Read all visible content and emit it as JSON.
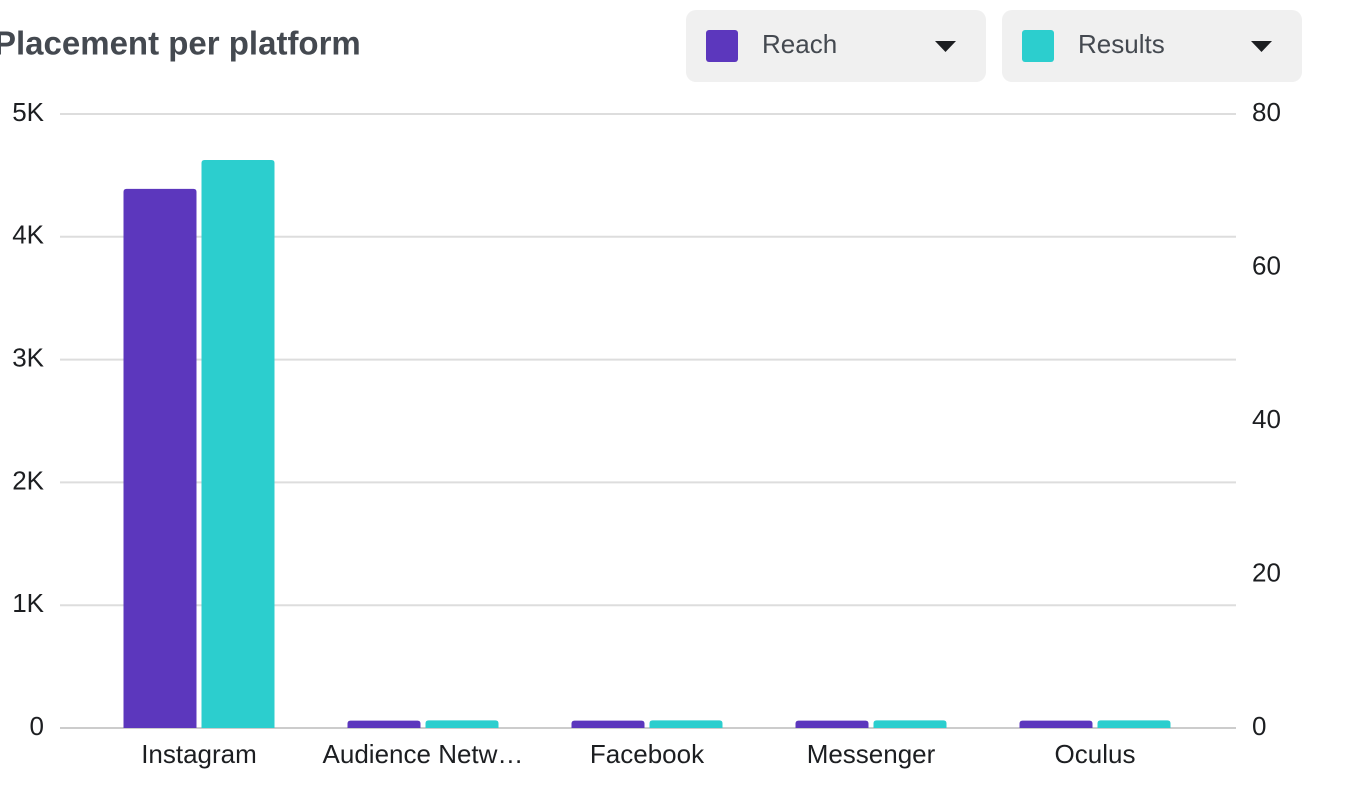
{
  "chart_data": {
    "type": "bar",
    "title": "Placement per platform",
    "categories": [
      "Instagram",
      "Audience Netw…",
      "Facebook",
      "Messenger",
      "Oculus"
    ],
    "series": [
      {
        "name": "Reach",
        "color": "#5c37bd",
        "values": [
          4390,
          60,
          60,
          60,
          60
        ]
      },
      {
        "name": "Results",
        "color": "#2ccece",
        "axis": "y2",
        "values": [
          74,
          1,
          1,
          1,
          1
        ]
      }
    ],
    "ylim": [
      0,
      5000
    ],
    "yticks": [
      0,
      {
        "value": 1000,
        "label": "1K"
      },
      {
        "value": 2000,
        "label": "2K"
      },
      {
        "value": 3000,
        "label": "3K"
      },
      {
        "value": 4000,
        "label": "4K"
      },
      {
        "value": 5000,
        "label": "5K"
      }
    ],
    "y2lim": [
      0,
      80
    ],
    "y2ticks": [
      0,
      20,
      40,
      60,
      80
    ],
    "grid": true
  }
}
